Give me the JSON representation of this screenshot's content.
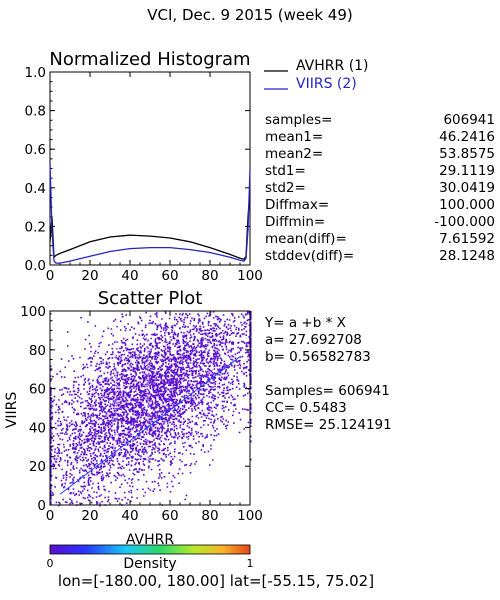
{
  "header": {
    "title": "VCI,  Dec. 9 2015 (week 49)"
  },
  "histogram": {
    "title": "Normalized Histogram",
    "xlim": [
      0,
      100
    ],
    "ylim": [
      0,
      1
    ],
    "xticks": [
      "0",
      "20",
      "40",
      "60",
      "80",
      "100"
    ],
    "yticks": [
      "0.0",
      "0.2",
      "0.4",
      "0.6",
      "0.8",
      "1.0"
    ],
    "legend": [
      {
        "label": "AVHRR (1)",
        "color": "#000000"
      },
      {
        "label": "VIIRS (2)",
        "color": "#2424c8"
      }
    ]
  },
  "stats": [
    {
      "key": "samples=",
      "value": "606941"
    },
    {
      "key": "mean1=",
      "value": "46.2416"
    },
    {
      "key": "mean2=",
      "value": "53.8575"
    },
    {
      "key": "std1=",
      "value": "29.1119"
    },
    {
      "key": "std2=",
      "value": "30.0419"
    },
    {
      "key": "Diffmax=",
      "value": "100.000"
    },
    {
      "key": "Diffmin=",
      "value": "-100.000"
    },
    {
      "key": "mean(diff)=",
      "value": "7.61592"
    },
    {
      "key": "stddev(diff)=",
      "value": "28.1248"
    }
  ],
  "scatter": {
    "title": "Scatter Plot",
    "xlabel": "AVHRR",
    "ylabel": "VIIRS",
    "xlim": [
      0,
      100
    ],
    "ylim": [
      0,
      100
    ],
    "xticks": [
      "0",
      "20",
      "40",
      "60",
      "80",
      "100"
    ],
    "yticks": [
      "0",
      "20",
      "40",
      "60",
      "80",
      "100"
    ]
  },
  "regression": {
    "equation": "Y= a +b * X",
    "a_line": "a= 27.692708",
    "b_line": "b= 0.56582783",
    "samples_line": "Samples= 606941",
    "cc_line": "CC=  0.5483",
    "rmse_line": "RMSE= 25.124191"
  },
  "colorbar": {
    "label": "Density",
    "min_label": "0",
    "max_label": "1"
  },
  "footer": {
    "range": "lon=[-180.00, 180.00] lat=[-55.15, 75.02]"
  },
  "colors": {
    "avhrr": "#000000",
    "viirs": "#2424c8",
    "scatter": "#5a0fd0",
    "fit": "#2040ff"
  },
  "chart_data": [
    {
      "type": "line",
      "title": "Normalized Histogram",
      "xlim": [
        0,
        100
      ],
      "ylim": [
        0,
        1
      ],
      "series": [
        {
          "name": "AVHRR (1)",
          "x": [
            0,
            1,
            2,
            3,
            5,
            10,
            20,
            30,
            40,
            50,
            60,
            70,
            80,
            90,
            95,
            97,
            98,
            99,
            100
          ],
          "values": [
            0.12,
            0.25,
            0.04,
            0.05,
            0.06,
            0.08,
            0.12,
            0.145,
            0.155,
            0.15,
            0.14,
            0.12,
            0.09,
            0.055,
            0.035,
            0.03,
            0.045,
            0.25,
            0.38
          ]
        },
        {
          "name": "VIIRS (2)",
          "x": [
            0,
            1,
            2,
            3,
            5,
            10,
            20,
            30,
            40,
            50,
            60,
            70,
            80,
            90,
            95,
            97,
            98,
            99,
            100
          ],
          "values": [
            0.53,
            0.18,
            0.02,
            0.01,
            0.01,
            0.02,
            0.045,
            0.07,
            0.085,
            0.09,
            0.09,
            0.08,
            0.065,
            0.04,
            0.025,
            0.02,
            0.035,
            0.18,
            0.5
          ]
        }
      ]
    },
    {
      "type": "scatter",
      "title": "Scatter Plot",
      "xlabel": "AVHRR",
      "ylabel": "VIIRS",
      "xlim": [
        0,
        100
      ],
      "ylim": [
        0,
        100
      ],
      "fit": {
        "a": 27.692708,
        "b": 0.56582783
      },
      "samples": 606941,
      "cc": 0.5483,
      "rmse": 25.124191
    }
  ]
}
